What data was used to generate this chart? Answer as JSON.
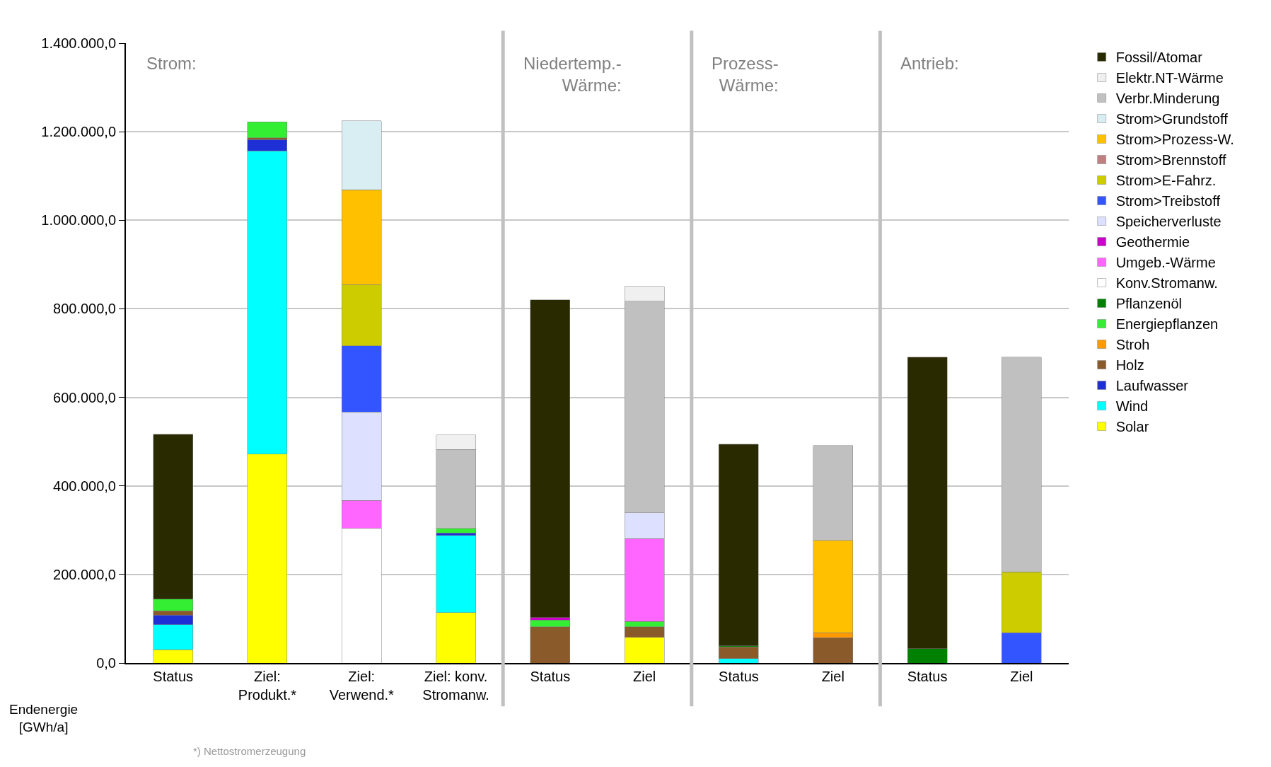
{
  "chart_data": {
    "type": "bar",
    "stacked": true,
    "ylabel": "Endenergie\n[GWh/a]",
    "categories": [
      "Status",
      "Ziel:\nProdukt.*",
      "Ziel:\nVerwend.*",
      "Ziel: konv.\nStromanw.",
      "Status",
      "Ziel",
      "Status",
      "Ziel",
      "Status",
      "Ziel"
    ],
    "ylim": [
      0,
      1400000
    ],
    "yticks": [
      {
        "value": 0,
        "label": "0,0"
      },
      {
        "value": 200000,
        "label": "200.000,0"
      },
      {
        "value": 400000,
        "label": "400.000,0"
      },
      {
        "value": 600000,
        "label": "600.000,0"
      },
      {
        "value": 800000,
        "label": "800.000,0"
      },
      {
        "value": 1000000,
        "label": "1.000.000,0"
      },
      {
        "value": 1200000,
        "label": "1.200.000,0"
      },
      {
        "value": 1400000,
        "label": "1.400.000,0"
      }
    ],
    "grid": "y",
    "legend": "right",
    "annotations": [
      "Strom:",
      "Niedertemp.-\nWärme:",
      "Prozess-\nWärme:",
      "Antrieb:",
      "*) Nettostromerzeugung"
    ],
    "series": [
      {
        "name": "Solar",
        "color": "#ffff00",
        "values": [
          30000,
          472000,
          null,
          114000,
          null,
          58000,
          null,
          null,
          null,
          null
        ]
      },
      {
        "name": "Wind",
        "color": "#00ffff",
        "values": [
          57000,
          685000,
          null,
          174000,
          null,
          null,
          10000,
          null,
          null,
          null
        ]
      },
      {
        "name": "Laufwasser",
        "color": "#1f2fd6",
        "values": [
          21000,
          25000,
          null,
          6000,
          null,
          null,
          null,
          null,
          null,
          null
        ]
      },
      {
        "name": "Holz",
        "color": "#8b5a2b",
        "values": [
          10000,
          4000,
          null,
          null,
          82000,
          24000,
          26000,
          57000,
          null,
          null
        ]
      },
      {
        "name": "Stroh",
        "color": "#ff9900",
        "values": [
          null,
          null,
          null,
          null,
          null,
          null,
          null,
          11000,
          null,
          null
        ]
      },
      {
        "name": "Energiepflanzen",
        "color": "#33ee33",
        "values": [
          26000,
          36000,
          null,
          10000,
          15000,
          12000,
          null,
          null,
          null,
          null
        ]
      },
      {
        "name": "Pflanzenöl",
        "color": "#008000",
        "values": [
          null,
          null,
          null,
          null,
          null,
          null,
          3000,
          null,
          32000,
          null
        ]
      },
      {
        "name": "Konv.Stromanw.",
        "color": "#ffffff",
        "values": [
          null,
          null,
          304000,
          null,
          null,
          null,
          null,
          null,
          null,
          null
        ]
      },
      {
        "name": "Umgeb.-Wärme",
        "color": "#ff66ff",
        "values": [
          null,
          null,
          63000,
          null,
          null,
          187000,
          null,
          null,
          null,
          null
        ]
      },
      {
        "name": "Geothermie",
        "color": "#cc00cc",
        "values": [
          null,
          null,
          null,
          null,
          6000,
          null,
          null,
          null,
          null,
          null
        ]
      },
      {
        "name": "Speicherverluste",
        "color": "#dde0ff",
        "values": [
          null,
          null,
          200000,
          null,
          null,
          58000,
          null,
          null,
          null,
          null
        ]
      },
      {
        "name": "Strom>Treibstoff",
        "color": "#3355ff",
        "values": [
          null,
          null,
          149000,
          null,
          null,
          null,
          null,
          null,
          null,
          68000
        ]
      },
      {
        "name": "Strom>E-Fahrz.",
        "color": "#cccc00",
        "values": [
          null,
          null,
          139000,
          null,
          null,
          null,
          null,
          null,
          null,
          138000
        ]
      },
      {
        "name": "Strom>Brennstoff",
        "color": "#c08080",
        "values": [
          null,
          null,
          null,
          null,
          null,
          null,
          null,
          null,
          null,
          null
        ]
      },
      {
        "name": "Strom>Prozess-W.",
        "color": "#ffc000",
        "values": [
          null,
          null,
          214000,
          null,
          null,
          null,
          null,
          209000,
          null,
          null
        ]
      },
      {
        "name": "Strom>Grundstoff",
        "color": "#d9eef2",
        "values": [
          null,
          null,
          156000,
          null,
          null,
          null,
          null,
          null,
          null,
          null
        ]
      },
      {
        "name": "Verbr.Minderung",
        "color": "#c0c0c0",
        "values": [
          null,
          null,
          null,
          178000,
          null,
          478000,
          null,
          214000,
          null,
          485000
        ]
      },
      {
        "name": "Elektr.NT-Wärme",
        "color": "#f0f0f0",
        "values": [
          null,
          null,
          null,
          33000,
          null,
          34000,
          null,
          null,
          null,
          null
        ]
      },
      {
        "name": "Fossil/Atomar",
        "color": "#2a2a00",
        "values": [
          373000,
          null,
          null,
          null,
          717000,
          null,
          455000,
          null,
          659000,
          null
        ]
      }
    ]
  }
}
